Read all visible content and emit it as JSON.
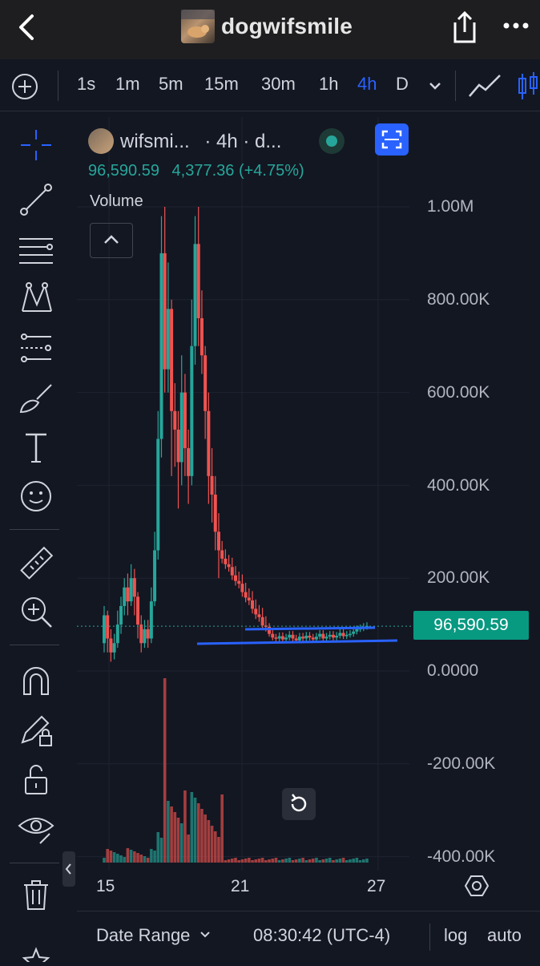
{
  "header": {
    "title": "dogwifsmile",
    "back_icon": "chevron-left-icon",
    "share_icon": "share-icon",
    "more_icon": "more-horizontal-icon"
  },
  "timeframes": {
    "items": [
      "1s",
      "1m",
      "5m",
      "15m",
      "30m",
      "1h",
      "4h",
      "D"
    ],
    "active": "4h",
    "add_icon": "plus-circle-icon",
    "dropdown_icon": "chevron-down-icon",
    "chart_type_icons": [
      "line-chart-icon",
      "candles-icon"
    ]
  },
  "legend": {
    "symbol": "wifsmi...",
    "interval": "· 4h · d...",
    "price": "96,590.59",
    "change": "4,377.36 (+4.75%)",
    "volume_label": "Volume"
  },
  "price_axis": {
    "labels": [
      "1.00M",
      "800.00K",
      "600.00K",
      "400.00K",
      "200.00K",
      "0.0000",
      "-200.00K",
      "-400.00K"
    ],
    "current_price_tag": "96,590.59"
  },
  "time_axis": {
    "labels": [
      "15",
      "21",
      "27"
    ]
  },
  "bottom_bar": {
    "date_range": "Date Range",
    "clock": "08:30:42 (UTC-4)",
    "log": "log",
    "auto": "auto"
  },
  "colors": {
    "up": "#26a69a",
    "down": "#ef5350",
    "accent": "#2962ff",
    "drawn_lines": "#2962ff",
    "price_tag": "#089981",
    "background": "#131722"
  },
  "chart_data": {
    "type": "candlestick",
    "ylim": [
      -400000,
      1000000
    ],
    "current_price": 96590.59,
    "x_ticks": [
      "15",
      "21",
      "27"
    ]
  }
}
